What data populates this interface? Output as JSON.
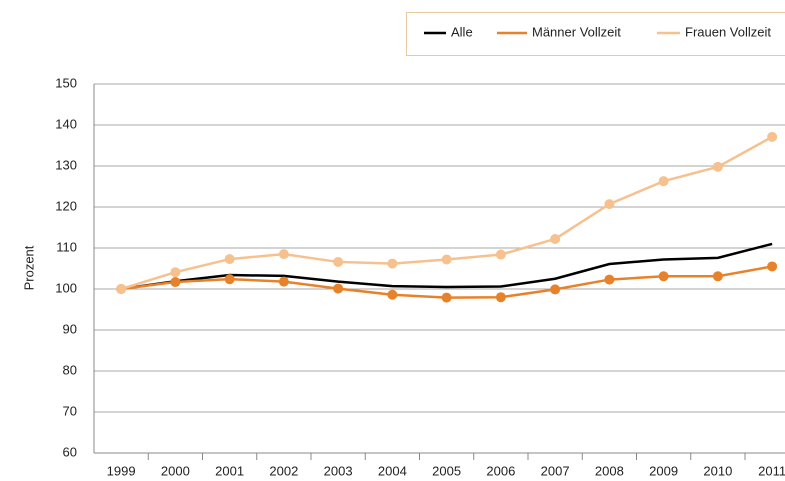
{
  "chart_data": {
    "type": "line",
    "y_label": "Prozent",
    "categories": [
      "1999",
      "2000",
      "2001",
      "2002",
      "2003",
      "2004",
      "2005",
      "2006",
      "2007",
      "2008",
      "2009",
      "2010",
      "2011"
    ],
    "series": [
      {
        "name": "Alle",
        "color": "#000000",
        "markers": false,
        "values": [
          100,
          101.9,
          103.4,
          103.2,
          101.8,
          100.7,
          100.5,
          100.6,
          102.5,
          106.1,
          107.2,
          107.6,
          111
        ]
      },
      {
        "name": "Männer Vollzeit",
        "color": "#e8822a",
        "markers": true,
        "values": [
          100,
          101.7,
          102.4,
          101.8,
          100.1,
          98.6,
          97.9,
          98,
          99.9,
          102.3,
          103.1,
          103.1,
          105.5
        ]
      },
      {
        "name": "Frauen Vollzeit",
        "color": "#f6c18e",
        "markers": true,
        "values": [
          100,
          104.1,
          107.3,
          108.5,
          106.6,
          106.2,
          107.2,
          108.4,
          112.2,
          120.7,
          126.3,
          129.8,
          137.1
        ]
      }
    ],
    "ylim": [
      60,
      150
    ],
    "yticks": [
      60,
      70,
      80,
      90,
      100,
      110,
      120,
      130,
      140,
      150
    ],
    "grid": true
  }
}
